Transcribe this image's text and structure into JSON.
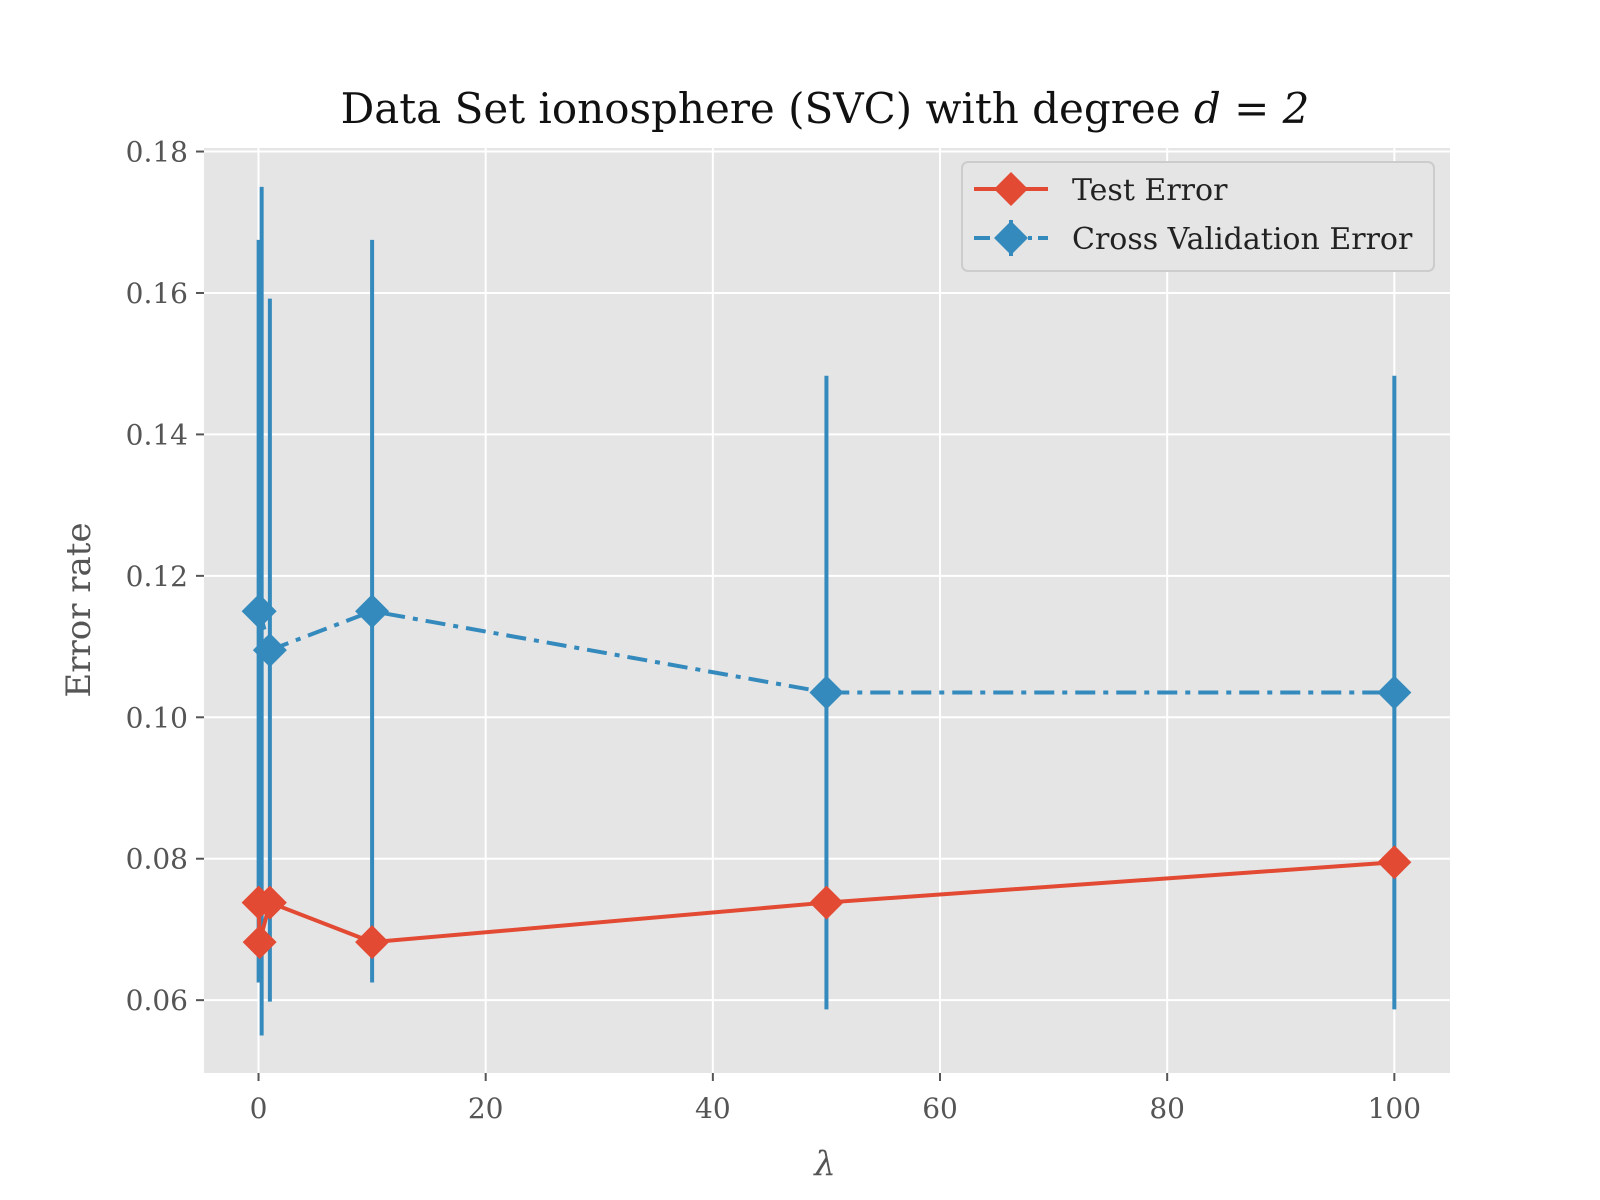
{
  "chart_data": {
    "type": "line",
    "title": "Data Set ionosphere (SVC) with degree d = 2",
    "title_parts": {
      "main": "Data Set ionosphere (SVC) with degree ",
      "math": "d = 2"
    },
    "xlabel": "λ",
    "ylabel": "Error rate",
    "xlim": [
      -4.8,
      104.9
    ],
    "ylim": [
      0.0497,
      0.1805
    ],
    "xticks": [
      0,
      20,
      40,
      60,
      80,
      100
    ],
    "xtick_labels": [
      "0",
      "20",
      "40",
      "60",
      "80",
      "100"
    ],
    "yticks": [
      0.06,
      0.08,
      0.1,
      0.12,
      0.14,
      0.16,
      0.18
    ],
    "ytick_labels": [
      "0.06",
      "0.08",
      "0.10",
      "0.12",
      "0.14",
      "0.16",
      "0.18"
    ],
    "grid": true,
    "legend_position": "top-right",
    "colors": {
      "background": "#e5e5e5",
      "grid": "#ffffff",
      "test": "#e24a33",
      "cv": "#348abd"
    },
    "series": [
      {
        "name": "Test Error",
        "style": "solid",
        "marker": "diamond",
        "color": "#e24a33",
        "points": [
          {
            "x": 0.01,
            "y": 0.0738
          },
          {
            "x": 0.1,
            "y": 0.0682
          },
          {
            "x": 1,
            "y": 0.0738
          },
          {
            "x": 10,
            "y": 0.0682
          },
          {
            "x": 50,
            "y": 0.0738
          },
          {
            "x": 100,
            "y": 0.0795
          }
        ]
      },
      {
        "name": "Cross Validation Error",
        "style": "dashdot",
        "marker": "diamond",
        "color": "#348abd",
        "points": [
          {
            "x": 0.01,
            "y": 0.115,
            "err": 0.0525
          },
          {
            "x": 0.1,
            "y": 0.115,
            "err": 0.06
          },
          {
            "x": 1,
            "y": 0.1095,
            "err": 0.0497
          },
          {
            "x": 10,
            "y": 0.115,
            "err": 0.0525
          },
          {
            "x": 50,
            "y": 0.1035,
            "err": 0.0448
          },
          {
            "x": 100,
            "y": 0.1035,
            "err": 0.0448
          }
        ]
      }
    ]
  }
}
